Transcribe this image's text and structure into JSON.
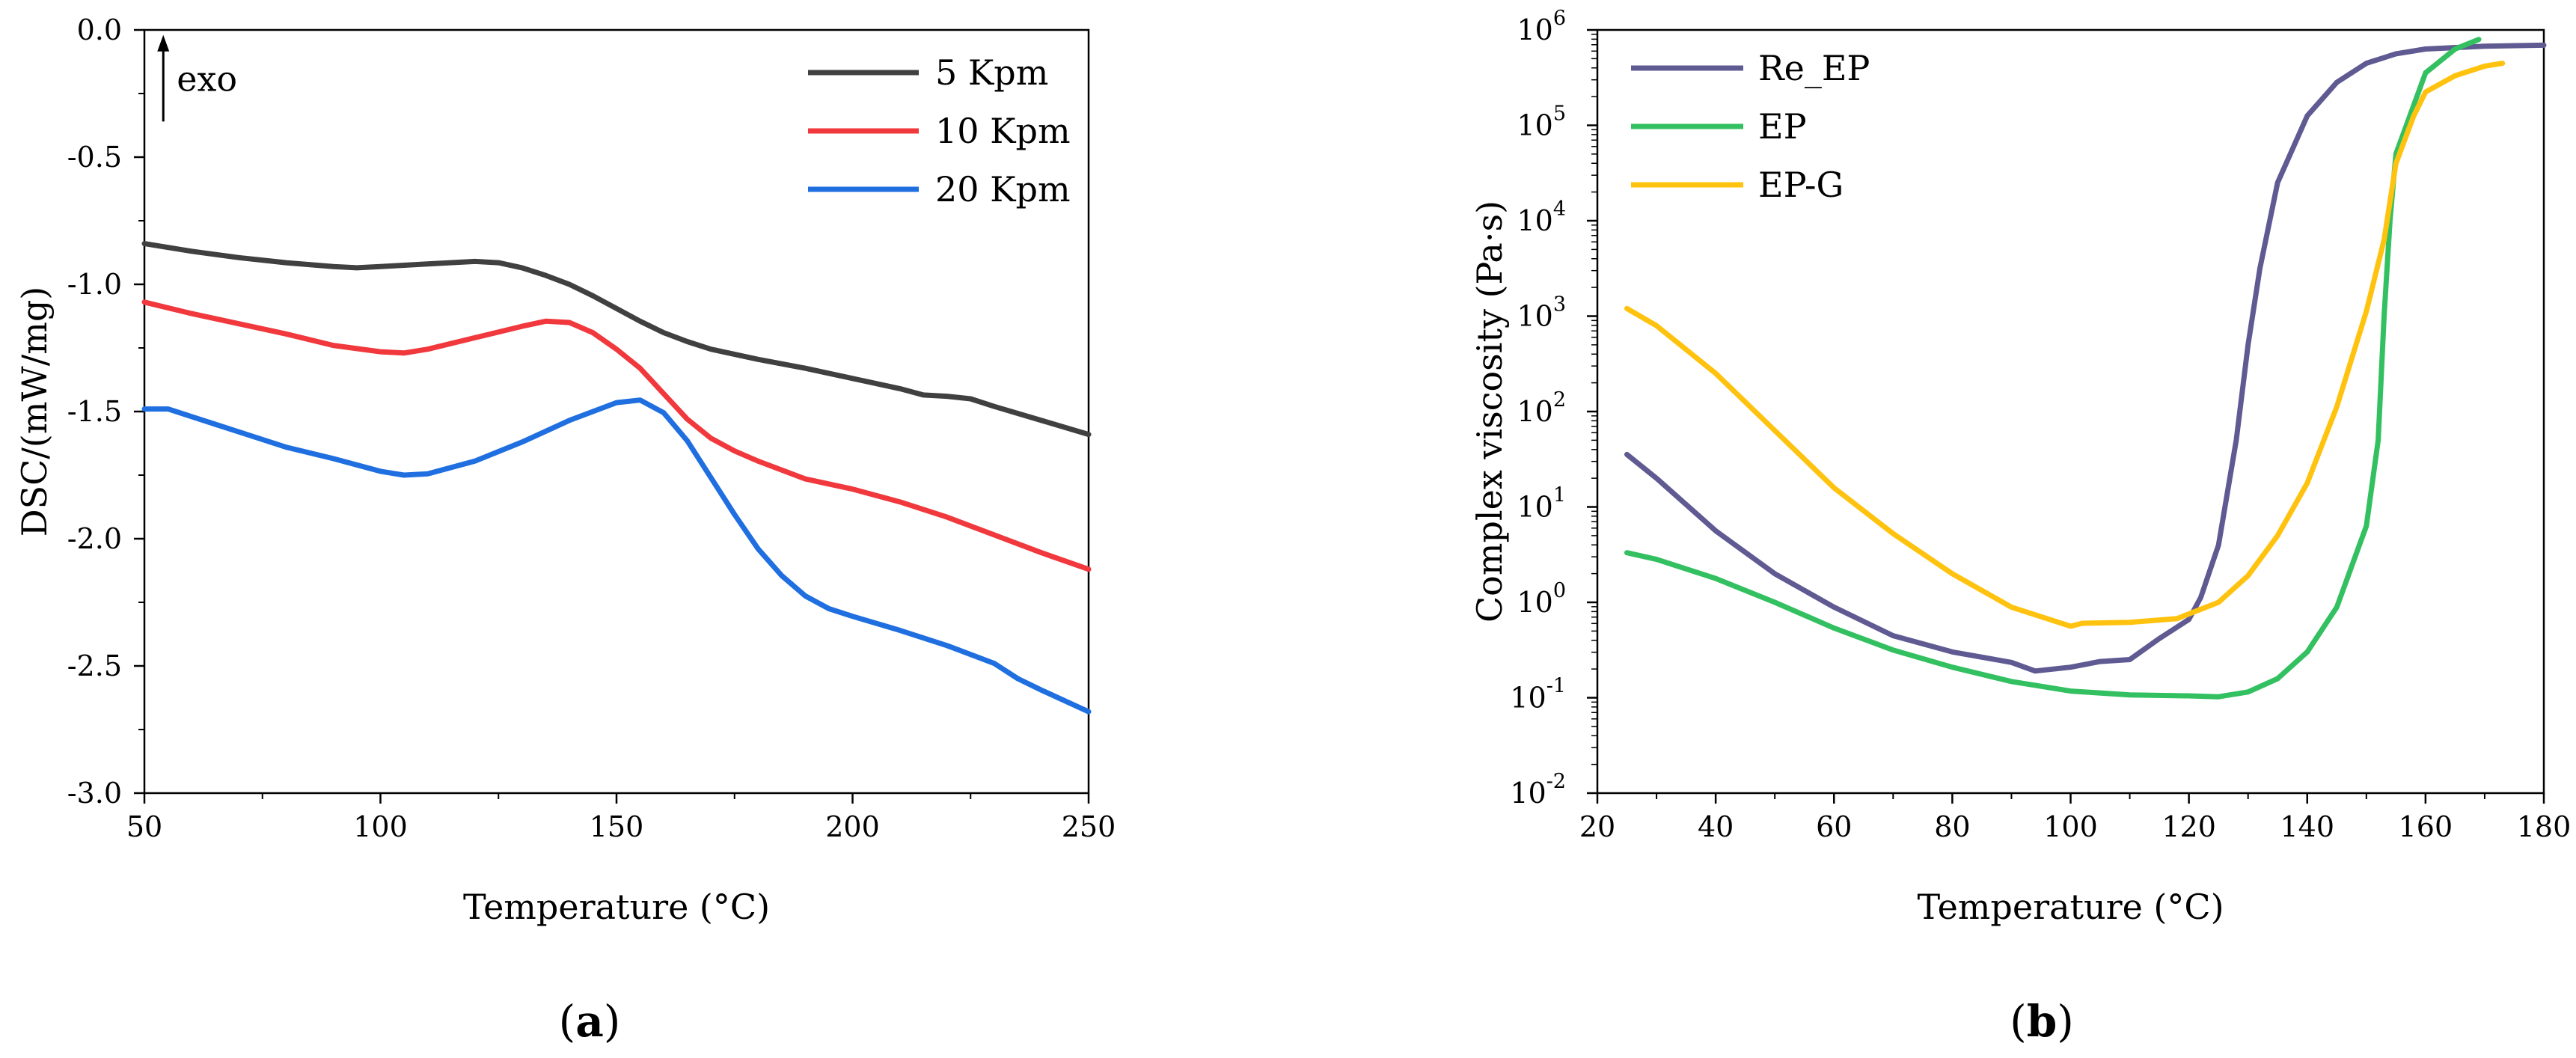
{
  "figure": {
    "panel_a_caption": [
      "(",
      "a",
      ")"
    ],
    "panel_b_caption": [
      "(",
      "b",
      ")"
    ]
  },
  "chart_data": [
    {
      "type": "line",
      "panel": "a",
      "xlabel": "Temperature (°C)",
      "ylabel": "DSC/(mW/mg)",
      "xlim": [
        50,
        250
      ],
      "ylim": [
        -3.0,
        0.0
      ],
      "xticks": [
        50,
        100,
        150,
        200,
        250
      ],
      "xtick_labels": [
        "50",
        "100",
        "150",
        "200",
        "250"
      ],
      "yticks": [
        0.0,
        -0.5,
        -1.0,
        -1.5,
        -2.0,
        -2.5,
        -3.0
      ],
      "ytick_labels": [
        "0.0",
        "-0.5",
        "-1.0",
        "-1.5",
        "-2.0",
        "-2.5",
        "-3.0"
      ],
      "annotation": {
        "text": "exo",
        "arrow": "up",
        "x": 54,
        "y_from": -0.36,
        "y_to": -0.02
      },
      "legend_position": "top-right",
      "series": [
        {
          "name": "5 Kpm",
          "color": "#404040",
          "x": [
            50,
            60,
            70,
            80,
            90,
            95,
            100,
            110,
            120,
            125,
            130,
            135,
            140,
            145,
            150,
            155,
            160,
            165,
            170,
            180,
            190,
            200,
            210,
            215,
            220,
            225,
            230,
            240,
            250
          ],
          "y": [
            -0.84,
            -0.87,
            -0.895,
            -0.915,
            -0.93,
            -0.935,
            -0.93,
            -0.92,
            -0.91,
            -0.915,
            -0.935,
            -0.965,
            -1.0,
            -1.045,
            -1.095,
            -1.145,
            -1.19,
            -1.225,
            -1.255,
            -1.295,
            -1.33,
            -1.37,
            -1.41,
            -1.435,
            -1.44,
            -1.45,
            -1.48,
            -1.535,
            -1.59
          ]
        },
        {
          "name": "10 Kpm",
          "color": "#f0383d",
          "x": [
            50,
            60,
            70,
            80,
            90,
            100,
            105,
            110,
            120,
            130,
            135,
            140,
            145,
            150,
            155,
            160,
            165,
            170,
            175,
            180,
            190,
            200,
            210,
            220,
            230,
            240,
            250
          ],
          "y": [
            -1.07,
            -1.115,
            -1.155,
            -1.195,
            -1.24,
            -1.265,
            -1.27,
            -1.255,
            -1.21,
            -1.165,
            -1.145,
            -1.15,
            -1.19,
            -1.255,
            -1.33,
            -1.43,
            -1.53,
            -1.605,
            -1.655,
            -1.695,
            -1.765,
            -1.805,
            -1.855,
            -1.915,
            -1.985,
            -2.055,
            -2.12
          ]
        },
        {
          "name": "20 Kpm",
          "color": "#1f6fe0",
          "x": [
            50,
            55,
            60,
            65,
            70,
            80,
            90,
            100,
            105,
            110,
            120,
            130,
            140,
            150,
            155,
            160,
            165,
            170,
            175,
            180,
            185,
            190,
            195,
            200,
            210,
            220,
            230,
            235,
            240,
            250
          ],
          "y": [
            -1.49,
            -1.49,
            -1.52,
            -1.55,
            -1.58,
            -1.64,
            -1.685,
            -1.735,
            -1.75,
            -1.745,
            -1.695,
            -1.62,
            -1.535,
            -1.465,
            -1.455,
            -1.505,
            -1.615,
            -1.76,
            -1.905,
            -2.04,
            -2.145,
            -2.225,
            -2.275,
            -2.305,
            -2.36,
            -2.42,
            -2.49,
            -2.55,
            -2.595,
            -2.68
          ]
        }
      ]
    },
    {
      "type": "line",
      "panel": "b",
      "xlabel": "Temperature (°C)",
      "ylabel": "Complex viscosity (Pa·s)",
      "yscale": "log",
      "xlim": [
        20,
        180
      ],
      "ylim_log10": [
        -2,
        6
      ],
      "xticks": [
        20,
        40,
        60,
        80,
        100,
        120,
        140,
        160,
        180
      ],
      "xtick_labels": [
        "20",
        "40",
        "60",
        "80",
        "100",
        "120",
        "140",
        "160",
        "180"
      ],
      "yticks_log10": [
        -2,
        -1,
        0,
        1,
        2,
        3,
        4,
        5,
        6
      ],
      "ytick_labels": [
        "10",
        "10",
        "10",
        "10",
        "10",
        "10",
        "10",
        "10",
        "10"
      ],
      "ytick_exponents": [
        "-2",
        "-1",
        "0",
        "1",
        "2",
        "3",
        "4",
        "5",
        "6"
      ],
      "legend_position": "top-left",
      "series": [
        {
          "name": "Re_EP",
          "color": "#5f5a92",
          "x": [
            25,
            30,
            40,
            50,
            60,
            70,
            80,
            90,
            94,
            100,
            105,
            110,
            115,
            120,
            122,
            125,
            128,
            130,
            132,
            135,
            140,
            145,
            150,
            155,
            160,
            170,
            180
          ],
          "y_log10": [
            1.55,
            1.3,
            0.75,
            0.3,
            -0.05,
            -0.35,
            -0.52,
            -0.63,
            -0.72,
            -0.68,
            -0.62,
            -0.6,
            -0.38,
            -0.18,
            0.05,
            0.6,
            1.7,
            2.7,
            3.5,
            4.4,
            5.1,
            5.45,
            5.65,
            5.75,
            5.8,
            5.83,
            5.84
          ]
        },
        {
          "name": "EP",
          "color": "#33c061",
          "x": [
            25,
            30,
            40,
            50,
            60,
            70,
            80,
            90,
            100,
            110,
            120,
            125,
            130,
            135,
            140,
            145,
            150,
            152,
            153,
            154,
            155,
            160,
            165,
            169
          ],
          "y_log10": [
            0.52,
            0.45,
            0.25,
            0.0,
            -0.27,
            -0.5,
            -0.68,
            -0.83,
            -0.93,
            -0.97,
            -0.98,
            -0.99,
            -0.94,
            -0.8,
            -0.52,
            -0.05,
            0.8,
            1.7,
            3.0,
            4.0,
            4.7,
            5.55,
            5.8,
            5.9
          ]
        },
        {
          "name": "EP-G",
          "color": "#ffc20e",
          "x": [
            25,
            30,
            40,
            50,
            60,
            70,
            80,
            90,
            100,
            102,
            110,
            118,
            125,
            130,
            135,
            140,
            145,
            150,
            153,
            155,
            158,
            160,
            165,
            170,
            173
          ],
          "y_log10": [
            3.08,
            2.9,
            2.4,
            1.8,
            1.2,
            0.72,
            0.3,
            -0.05,
            -0.25,
            -0.22,
            -0.21,
            -0.17,
            0.0,
            0.28,
            0.7,
            1.25,
            2.05,
            3.05,
            3.8,
            4.6,
            5.1,
            5.35,
            5.52,
            5.62,
            5.65
          ]
        }
      ]
    }
  ]
}
